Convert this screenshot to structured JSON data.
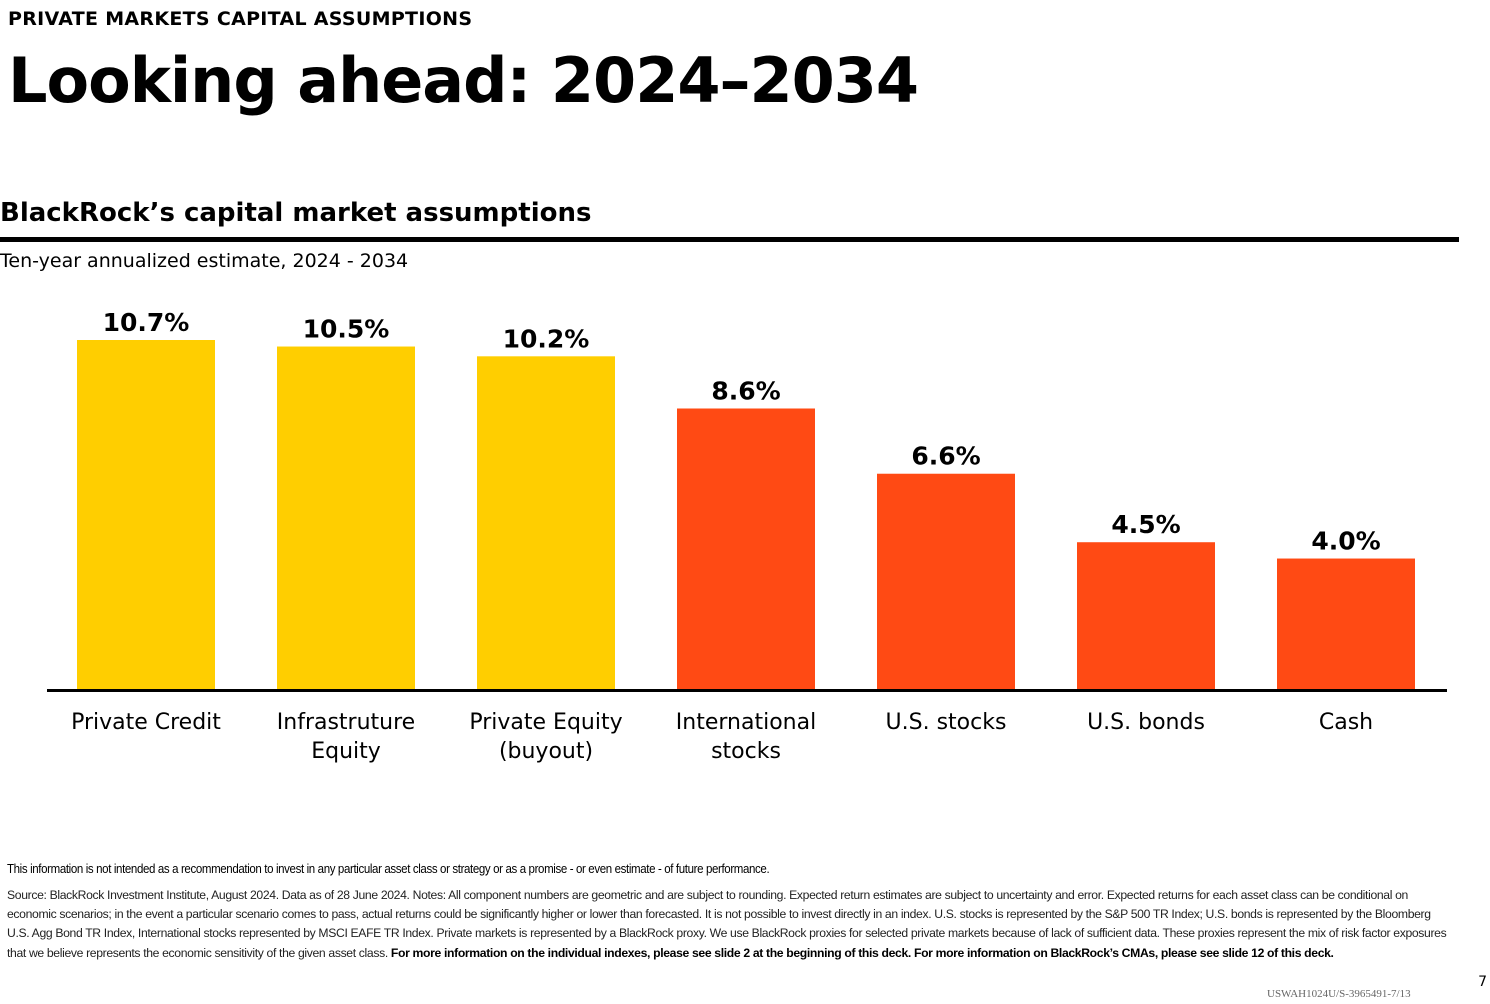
{
  "header": {
    "eyebrow": "PRIVATE MARKETS CAPITAL ASSUMPTIONS",
    "title": "Looking ahead: 2024–2034"
  },
  "chart_data": {
    "type": "bar",
    "title": "BlackRock’s capital market assumptions",
    "subtitle": "Ten-year annualized estimate, 2024 - 2034",
    "categories": [
      [
        "Private Credit"
      ],
      [
        "Infrastruture",
        "Equity"
      ],
      [
        "Private Equity",
        "(buyout)"
      ],
      [
        "International",
        "stocks"
      ],
      [
        "U.S. stocks"
      ],
      [
        "U.S. bonds"
      ],
      [
        "Cash"
      ]
    ],
    "values": [
      10.7,
      10.5,
      10.2,
      8.6,
      6.6,
      4.5,
      4.0
    ],
    "value_labels": [
      "10.7%",
      "10.5%",
      "10.2%",
      "8.6%",
      "6.6%",
      "4.5%",
      "4.0%"
    ],
    "colors": [
      "#FFCE00",
      "#FFCE00",
      "#FFCE00",
      "#FF4A14",
      "#FF4A14",
      "#FF4A14",
      "#FF4A14"
    ],
    "ylim": [
      0,
      10.7
    ],
    "grid": false,
    "legend": "none"
  },
  "footnotes": {
    "disclaimer": "This information is not intended as a recommendation to invest in any particular asset class or strategy or as a promise - or even estimate - of future performance.",
    "source": "Source: BlackRock Investment Institute, August 2024. Data as of 28 June 2024. Notes: All component numbers are geometric and are subject to rounding. Expected return estimates are subject to uncertainty and error. Expected returns for each asset class can be conditional on economic scenarios; in the event a particular scenario comes to pass, actual returns could be significantly higher or lower than forecasted. It is not possible to invest directly in an index. U.S. stocks is represented by the S&P 500 TR Index; U.S. bonds is represented by the Bloomberg U.S. Agg Bond TR Index, International stocks represented by MSCI EAFE TR Index. Private markets is represented by a BlackRock proxy. We use BlackRock proxies for selected private markets because of lack of sufficient data. These proxies represent the mix of risk factor exposures that we believe represents the economic sensitivity of the given asset class.",
    "source_emphasis": "For more information on the individual indexes, please see slide 2 at the beginning of this deck. For more information on BlackRock’s CMAs, please see slide 12 of this deck."
  },
  "footer": {
    "page_number": "7",
    "code": "USWAH1024U/S-3965491-7/13"
  }
}
